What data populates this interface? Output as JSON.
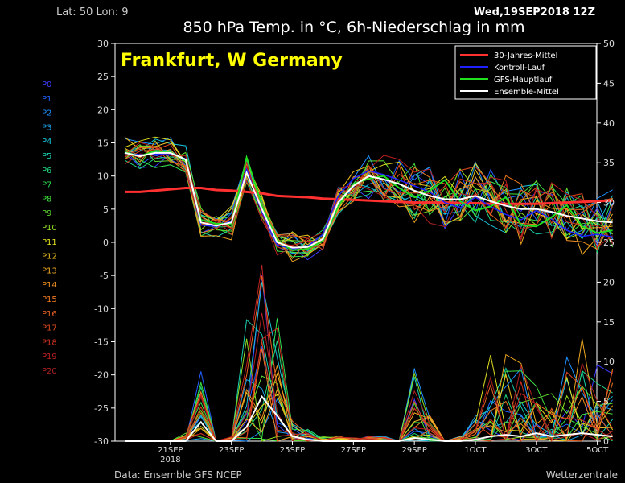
{
  "header": {
    "latlon": "Lat: 50 Lon: 9",
    "date": "Wed,19SEP2018 12Z",
    "title": "850 hPa Temp. in °C, 6h-Niederschlag in mm"
  },
  "location": "Frankfurt, W Germany",
  "footer": {
    "source": "Data: Ensemble GFS NCEP",
    "brand": "Wetterzentrale"
  },
  "members": {
    "labels": [
      "P0",
      "P1",
      "P2",
      "P3",
      "P4",
      "P5",
      "P6",
      "P7",
      "P8",
      "P9",
      "P10",
      "P11",
      "P12",
      "P13",
      "P14",
      "P15",
      "P16",
      "P17",
      "P18",
      "P19",
      "P20"
    ],
    "colors": [
      "#3c3cff",
      "#2060ff",
      "#1e90ff",
      "#1ea0e8",
      "#18c0d8",
      "#18d0b0",
      "#20d880",
      "#30e050",
      "#40e040",
      "#60e030",
      "#90e020",
      "#e0e020",
      "#f0c020",
      "#f0a820",
      "#f09020",
      "#f07820",
      "#e86020",
      "#e04820",
      "#d03020",
      "#c02020",
      "#b02020"
    ]
  },
  "chart_data": {
    "type": "line",
    "title": "850 hPa Temp. in °C, 6h-Niederschlag in mm",
    "x_ticks": [
      "21SEP 2018",
      "23SEP",
      "25SEP",
      "27SEP",
      "29SEP",
      "1OCT",
      "3OCT",
      "5OCT"
    ],
    "y_left": {
      "label": "°C",
      "min": -30,
      "max": 30,
      "ticks": [
        30,
        25,
        20,
        15,
        10,
        5,
        0,
        -5,
        -10,
        -15,
        -20,
        -25,
        -30
      ]
    },
    "y_right": {
      "label": "mm",
      "min": 0,
      "max": 50,
      "ticks": [
        50,
        45,
        40,
        35,
        30,
        25,
        20,
        15,
        10,
        5,
        0
      ]
    },
    "grid": false,
    "legend_position": "top-right",
    "legend": [
      {
        "name": "30-Jahres-Mittel",
        "color": "#ff3030"
      },
      {
        "name": "Kontroll-Lauf",
        "color": "#2020ff"
      },
      {
        "name": "GFS-Hauptlauf",
        "color": "#20e020"
      },
      {
        "name": "Ensemble-Mittel",
        "color": "#ffffff"
      }
    ],
    "x_days": [
      0,
      0.5,
      1,
      1.5,
      2,
      2.5,
      3,
      3.5,
      4,
      4.5,
      5,
      5.5,
      6,
      6.5,
      7,
      7.5,
      8,
      8.5,
      9,
      9.5,
      10,
      10.5,
      11,
      11.5,
      12,
      12.5,
      13,
      13.5,
      14,
      14.5,
      15,
      15.5,
      16
    ],
    "climate_mean": [
      7.6,
      7.6,
      7.8,
      8.0,
      8.2,
      8.2,
      7.9,
      7.8,
      7.6,
      7.4,
      7.0,
      6.9,
      6.8,
      6.6,
      6.5,
      6.4,
      6.3,
      6.2,
      6.1,
      6.0,
      6.0,
      6.0,
      5.9,
      5.9,
      5.8,
      5.8,
      5.8,
      5.8,
      5.9,
      6.0,
      6.1,
      6.2,
      6.3
    ],
    "ensemble_mean": [
      13.5,
      13.0,
      13.5,
      13.5,
      12.5,
      3.0,
      2.5,
      3.0,
      10.5,
      5.0,
      0.0,
      -0.8,
      -0.7,
      0.5,
      6.0,
      8.5,
      10.0,
      9.5,
      8.8,
      7.8,
      7.0,
      6.5,
      6.5,
      7.0,
      6.2,
      5.5,
      5.0,
      5.0,
      4.6,
      4.0,
      3.6,
      3.2,
      3.0
    ],
    "control_run": [
      13.5,
      13.2,
      13.3,
      13.4,
      12.6,
      2.6,
      2.4,
      3.2,
      11.0,
      4.6,
      -0.4,
      -1.0,
      -0.6,
      1.2,
      7.0,
      9.6,
      10.8,
      10.2,
      9.4,
      8.5,
      7.6,
      6.0,
      5.2,
      6.8,
      5.4,
      4.2,
      3.4,
      4.8,
      3.5,
      1.8,
      0.9,
      1.2,
      0.8
    ],
    "gfs_main_run": [
      13.6,
      13.0,
      13.8,
      13.6,
      12.3,
      3.4,
      2.8,
      2.8,
      12.8,
      5.6,
      0.3,
      -1.2,
      -1.0,
      0.2,
      5.4,
      8.8,
      9.6,
      10.0,
      8.2,
      6.8,
      7.8,
      9.4,
      6.2,
      4.8,
      5.4,
      6.8,
      2.6,
      2.4,
      3.8,
      5.6,
      2.4,
      1.4,
      1.8
    ],
    "precip_mean_mm": [
      0,
      0,
      0,
      0,
      0,
      2.4,
      0,
      0,
      1.8,
      5.6,
      3.2,
      0.6,
      0.2,
      0,
      0,
      0,
      0,
      0,
      0,
      0.4,
      0.2,
      0,
      0,
      0.2,
      0.6,
      0.8,
      0.6,
      1.0,
      0.6,
      0.8,
      1.0,
      0.8,
      0.6
    ],
    "precip_max_mm": [
      0,
      0,
      0,
      0,
      0.8,
      7.2,
      0,
      0.6,
      12.4,
      21.2,
      15.2,
      2.0,
      1.0,
      0.4,
      0.6,
      0.4,
      0.4,
      0.6,
      0,
      8.8,
      2.2,
      0,
      0.4,
      2.4,
      9.2,
      8.2,
      7.6,
      6.2,
      4.8,
      9.0,
      8.4,
      7.6,
      6.6
    ]
  }
}
